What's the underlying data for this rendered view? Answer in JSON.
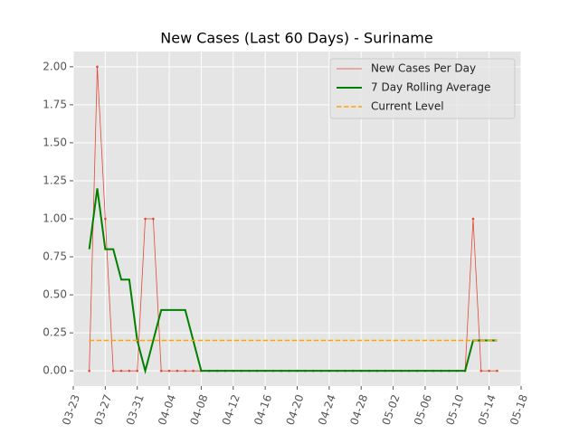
{
  "chart_data": {
    "type": "line",
    "title": "New Cases (Last 60 Days) - Suriname",
    "x": [
      "03-25",
      "03-26",
      "03-27",
      "03-28",
      "03-29",
      "03-30",
      "03-31",
      "04-01",
      "04-02",
      "04-03",
      "04-04",
      "04-05",
      "04-06",
      "04-07",
      "04-08",
      "04-09",
      "04-10",
      "04-11",
      "04-12",
      "04-13",
      "04-14",
      "04-15",
      "04-16",
      "04-17",
      "04-18",
      "04-19",
      "04-20",
      "04-21",
      "04-22",
      "04-23",
      "04-24",
      "04-25",
      "04-26",
      "04-27",
      "04-28",
      "04-29",
      "04-30",
      "05-01",
      "05-02",
      "05-03",
      "05-04",
      "05-05",
      "05-06",
      "05-07",
      "05-08",
      "05-09",
      "05-10",
      "05-11",
      "05-12",
      "05-13",
      "05-14",
      "05-15"
    ],
    "series": [
      {
        "name": "New Cases Per Day",
        "color": "#e24a33",
        "values": [
          0,
          2,
          1,
          0,
          0,
          0,
          0,
          1,
          1,
          0,
          0,
          0,
          0,
          0,
          0,
          0,
          0,
          0,
          0,
          0,
          0,
          0,
          0,
          0,
          0,
          0,
          0,
          0,
          0,
          0,
          0,
          0,
          0,
          0,
          0,
          0,
          0,
          0,
          0,
          0,
          0,
          0,
          0,
          0,
          0,
          0,
          0,
          0,
          1,
          0,
          0,
          0
        ]
      },
      {
        "name": "7 Day Rolling Average",
        "color": "#008000",
        "values": [
          0.8,
          1.2,
          0.8,
          0.8,
          0.6,
          0.6,
          0.2,
          0,
          0.2,
          0.4,
          0.4,
          0.4,
          0.4,
          0.2,
          0,
          0,
          0,
          0,
          0,
          0,
          0,
          0,
          0,
          0,
          0,
          0,
          0,
          0,
          0,
          0,
          0,
          0,
          0,
          0,
          0,
          0,
          0,
          0,
          0,
          0,
          0,
          0,
          0,
          0,
          0,
          0,
          0,
          0,
          0.2,
          0.2,
          0.2,
          0.2
        ]
      },
      {
        "name": "Current Level",
        "color": "#ffa500",
        "value": 0.2
      }
    ],
    "xlim": [
      "03-23",
      "05-18"
    ],
    "xticks": [
      "03-23",
      "03-27",
      "03-31",
      "04-04",
      "04-08",
      "04-12",
      "04-16",
      "04-20",
      "04-24",
      "04-28",
      "05-02",
      "05-06",
      "05-10",
      "05-14",
      "05-18"
    ],
    "ylim": [
      -0.1,
      2.1
    ],
    "yticks": [
      {
        "value": 0,
        "label": "0.00"
      },
      {
        "value": 0.25,
        "label": "0.25"
      },
      {
        "value": 0.5,
        "label": "0.50"
      },
      {
        "value": 0.75,
        "label": "0.75"
      },
      {
        "value": 1,
        "label": "1.00"
      },
      {
        "value": 1.25,
        "label": "1.25"
      },
      {
        "value": 1.5,
        "label": "1.50"
      },
      {
        "value": 1.75,
        "label": "1.75"
      },
      {
        "value": 2,
        "label": "2.00"
      }
    ],
    "grid": true,
    "legend": "upper right"
  }
}
